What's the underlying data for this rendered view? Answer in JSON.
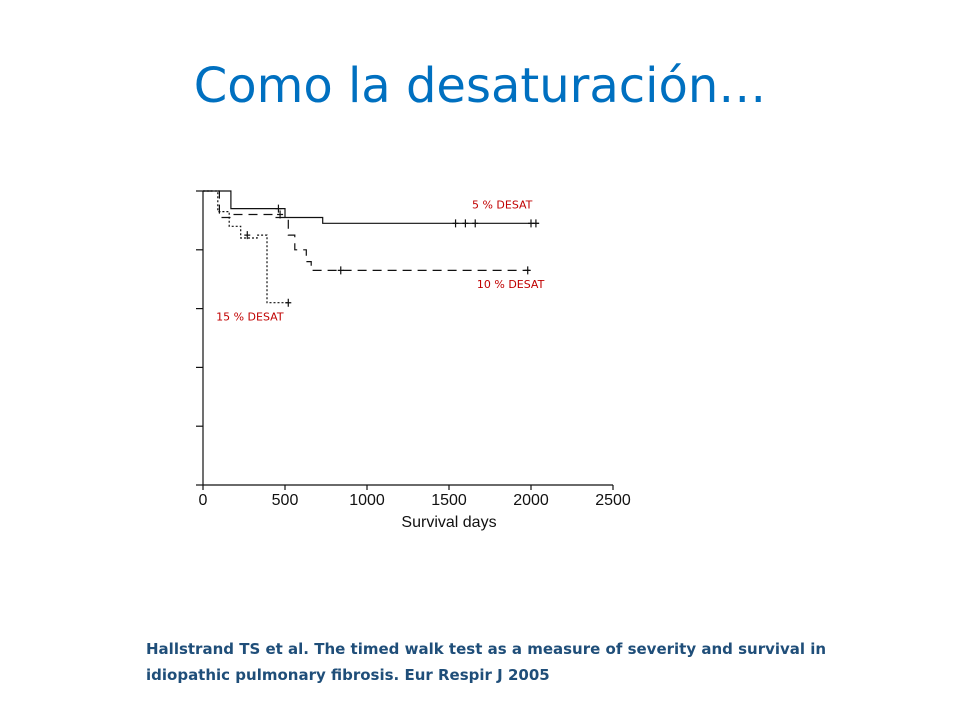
{
  "title": "Como la desaturación…",
  "citation": "Hallstrand TS et al. The timed walk test as a measure of severity and survival in idiopathic pulmonary fibrosis. Eur Respir J 2005",
  "colors": {
    "title": "#0070c0",
    "annotation": "#c00000",
    "citation": "#1f4e79"
  },
  "chart_data": {
    "type": "line",
    "step": true,
    "xlabel": "Survival days",
    "ylabel": "",
    "xlim": [
      0,
      2500
    ],
    "x_ticks": [
      0,
      500,
      1000,
      1500,
      2000,
      2500
    ],
    "ylim": [
      0,
      1
    ],
    "y_ticks": [
      0,
      0.2,
      0.4,
      0.6,
      0.8,
      1.0
    ],
    "y_tick_labels_visible": false,
    "grid": false,
    "series": [
      {
        "name": "5 % DESAT",
        "style": "solid",
        "points": [
          [
            0,
            1.0
          ],
          [
            170,
            1.0
          ],
          [
            170,
            0.94
          ],
          [
            500,
            0.94
          ],
          [
            500,
            0.91
          ],
          [
            730,
            0.91
          ],
          [
            730,
            0.89
          ],
          [
            2050,
            0.89
          ]
        ],
        "censored": [
          [
            460,
            0.94
          ],
          [
            1540,
            0.89
          ],
          [
            1600,
            0.89
          ],
          [
            1660,
            0.89
          ],
          [
            2000,
            0.89
          ],
          [
            2030,
            0.89
          ]
        ]
      },
      {
        "name": "10 % DESAT",
        "style": "dashed",
        "points": [
          [
            0,
            1.0
          ],
          [
            100,
            1.0
          ],
          [
            100,
            0.91
          ],
          [
            170,
            0.91
          ],
          [
            170,
            0.92
          ],
          [
            440,
            0.92
          ],
          [
            440,
            0.91
          ],
          [
            520,
            0.91
          ],
          [
            520,
            0.85
          ],
          [
            560,
            0.85
          ],
          [
            560,
            0.8
          ],
          [
            630,
            0.8
          ],
          [
            630,
            0.76
          ],
          [
            660,
            0.76
          ],
          [
            660,
            0.73
          ],
          [
            1990,
            0.73
          ]
        ],
        "censored": [
          [
            470,
            0.92
          ],
          [
            840,
            0.73
          ],
          [
            1980,
            0.73
          ]
        ]
      },
      {
        "name": "15 % DESAT",
        "style": "dotted",
        "points": [
          [
            0,
            1.0
          ],
          [
            90,
            1.0
          ],
          [
            90,
            0.93
          ],
          [
            160,
            0.93
          ],
          [
            160,
            0.88
          ],
          [
            230,
            0.88
          ],
          [
            230,
            0.84
          ],
          [
            330,
            0.84
          ],
          [
            330,
            0.85
          ],
          [
            390,
            0.85
          ],
          [
            390,
            0.62
          ],
          [
            520,
            0.62
          ]
        ],
        "censored": [
          [
            270,
            0.85
          ],
          [
            520,
            0.62
          ]
        ]
      }
    ],
    "annotations": [
      {
        "text": "5 % DESAT",
        "x": 1640,
        "y": 0.94
      },
      {
        "text": "10 % DESAT",
        "x": 1670,
        "y": 0.67
      },
      {
        "text": "15 % DESAT",
        "x": 80,
        "y": 0.56
      }
    ]
  }
}
